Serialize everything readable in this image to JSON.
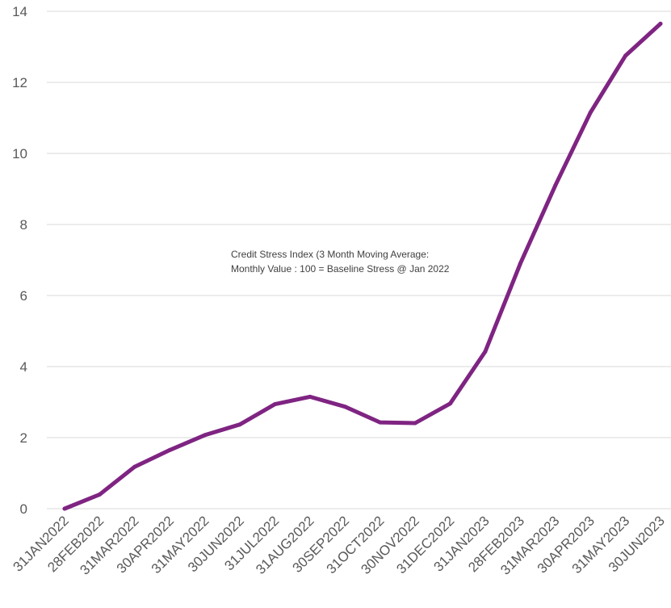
{
  "chart_data": {
    "type": "line",
    "title": "",
    "xlabel": "",
    "ylabel": "",
    "annotation": {
      "line1": "Credit Stress Index (3 Month Moving Average:",
      "line2": "Monthly Value : 100 = Baseline Stress @ Jan 2022"
    },
    "categories": [
      "31JAN2022",
      "28FEB2022",
      "31MAR2022",
      "30APR2022",
      "31MAY2022",
      "30JUN2022",
      "31JUL2022",
      "31AUG2022",
      "30SEP2022",
      "31OCT2022",
      "30NOV2022",
      "31DEC2022",
      "31JAN2023",
      "28FEB2023",
      "31MAR2023",
      "30APR2023",
      "31MAY2023",
      "30JUN2023"
    ],
    "series": [
      {
        "values": [
          0.0,
          0.4,
          1.18,
          1.65,
          2.07,
          2.37,
          2.94,
          3.15,
          2.87,
          2.43,
          2.41,
          2.96,
          4.42,
          6.9,
          9.1,
          11.15,
          12.75,
          13.65
        ]
      }
    ],
    "ylim": [
      0,
      14
    ],
    "yticks": [
      "0",
      "2",
      "4",
      "6",
      "8",
      "10",
      "12",
      "14"
    ],
    "grid": true,
    "legend": "none",
    "colors": {
      "line": "#7F2482",
      "grid": "#D9D9D9",
      "tick_text": "#595959"
    }
  }
}
